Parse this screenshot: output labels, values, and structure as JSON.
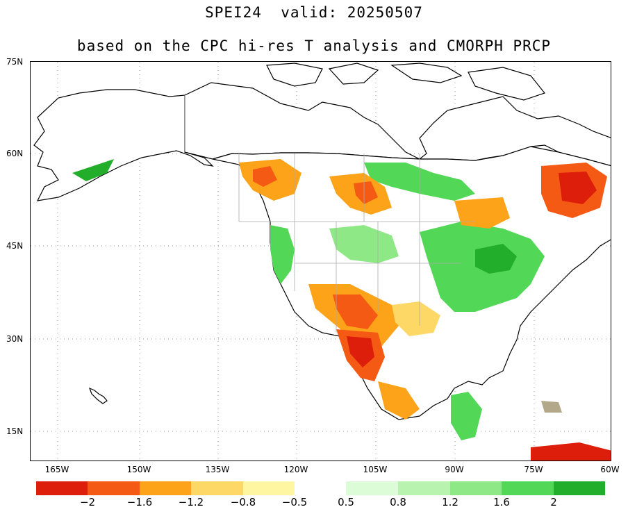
{
  "title_line1": "SPEI24  valid: 20250507",
  "title_line2": "based on the CPC hi-res T analysis and CMORPH PRCP",
  "lat_labels": [
    "75N",
    "60N",
    "45N",
    "30N",
    "15N"
  ],
  "lon_labels": [
    "165W",
    "150W",
    "135W",
    "120W",
    "105W",
    "90W",
    "75W",
    "60W"
  ],
  "colorbar": {
    "dry_colors": [
      "#dc1e0a",
      "#f55a14",
      "#fca319",
      "#fed866",
      "#fef6a0"
    ],
    "wet_colors": [
      "#dcfcd8",
      "#b8f3b0",
      "#8fe886",
      "#52d856",
      "#22ad2a"
    ],
    "dry_labels": [
      "−2",
      "−1.6",
      "−1.2",
      "−0.8",
      "−0.5"
    ],
    "wet_labels": [
      "0.5",
      "0.8",
      "1.2",
      "1.6",
      "2"
    ]
  },
  "colors": {
    "land_dry_strong": "#dc1e0a",
    "land_dry": "#f55a14",
    "land_dry_mod": "#fca319",
    "land_dry_weak": "#fed866",
    "land_wet": "#52d856",
    "land_wet_strong": "#22ad2a",
    "no_data": "#b4a88a"
  }
}
